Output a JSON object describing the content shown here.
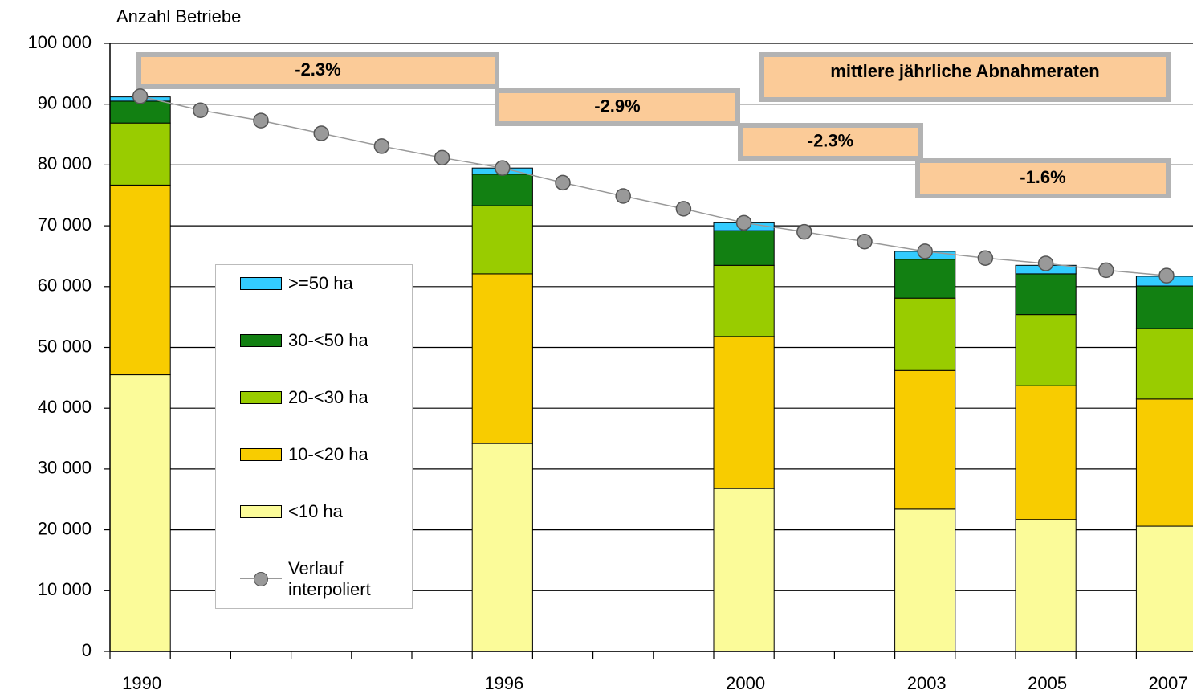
{
  "chart_data": {
    "type": "bar",
    "stacked": true,
    "ylabel": "Anzahl Betriebe",
    "categories": [
      "1990",
      null,
      null,
      null,
      null,
      null,
      "1996",
      null,
      null,
      null,
      "2000",
      null,
      null,
      "2003",
      null,
      "2005",
      null,
      "2007"
    ],
    "ylim": [
      0,
      100000
    ],
    "yticks": [
      0,
      {
        "value": 10000,
        "label": "10 000"
      },
      {
        "value": 20000,
        "label": "20 000"
      },
      {
        "value": 30000,
        "label": "30 000"
      },
      {
        "value": 40000,
        "label": "40 000"
      },
      {
        "value": 50000,
        "label": "50 000"
      },
      {
        "value": 60000,
        "label": "60 000"
      },
      {
        "value": 70000,
        "label": "70 000"
      },
      {
        "value": 80000,
        "label": "80 000"
      },
      {
        "value": 90000,
        "label": "90 000"
      },
      {
        "value": 100000,
        "label": "100 000"
      }
    ],
    "grid": true,
    "series": [
      {
        "name": "<10 ha",
        "color": "#fbfb99",
        "values": [
          45500,
          null,
          null,
          null,
          null,
          null,
          34200,
          null,
          null,
          null,
          26800,
          null,
          null,
          23400,
          null,
          21700,
          null,
          20600
        ]
      },
      {
        "name": "10-<20 ha",
        "color": "#f8cc00",
        "values": [
          31200,
          null,
          null,
          null,
          null,
          null,
          27900,
          null,
          null,
          null,
          25000,
          null,
          null,
          22800,
          null,
          22000,
          null,
          20900
        ]
      },
      {
        "name": "20-<30 ha",
        "color": "#99cc00",
        "values": [
          10200,
          null,
          null,
          null,
          null,
          null,
          11200,
          null,
          null,
          null,
          11700,
          null,
          null,
          11900,
          null,
          11700,
          null,
          11600
        ]
      },
      {
        "name": "30-<50 ha",
        "color": "#128012",
        "values": [
          3600,
          null,
          null,
          null,
          null,
          null,
          5200,
          null,
          null,
          null,
          5700,
          null,
          null,
          6400,
          null,
          6700,
          null,
          7000
        ]
      },
      {
        "name": ">=50 ha",
        "color": "#33ccff",
        "values": [
          700,
          null,
          null,
          null,
          null,
          null,
          1000,
          null,
          null,
          null,
          1300,
          null,
          null,
          1300,
          null,
          1400,
          null,
          1600
        ]
      },
      {
        "name": "Verlauf interpoliert",
        "type": "line",
        "color": "#999999",
        "values": [
          91300,
          89000,
          87300,
          85200,
          83100,
          81200,
          79500,
          77100,
          74900,
          72800,
          70500,
          69000,
          67400,
          65800,
          64700,
          63800,
          62700,
          61800
        ]
      }
    ],
    "annotations": [
      "-2.3%",
      "-2.9%",
      "-2.3%",
      "-1.6%"
    ],
    "annotation_title": "mittlere jährliche Abnahmeraten"
  }
}
